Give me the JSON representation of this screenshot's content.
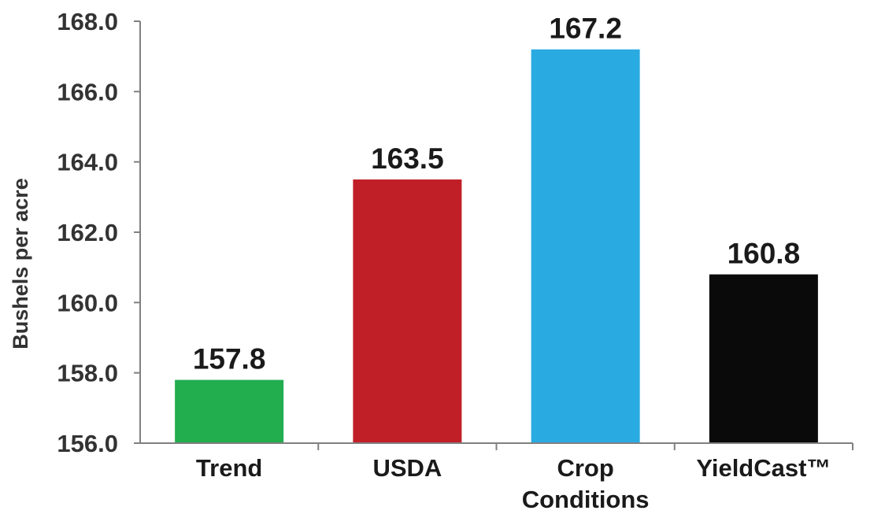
{
  "chart_data": {
    "type": "bar",
    "categories": [
      "Trend",
      "USDA",
      "Crop Conditions",
      "YieldCast™"
    ],
    "category_lines": [
      [
        "Trend"
      ],
      [
        "USDA"
      ],
      [
        "Crop",
        "Conditions"
      ],
      [
        "YieldCast™"
      ]
    ],
    "values": [
      157.8,
      163.5,
      167.2,
      160.8
    ],
    "value_labels": [
      "157.8",
      "163.5",
      "167.2",
      "160.8"
    ],
    "colors": [
      "#22ad4f",
      "#c01f27",
      "#29abe2",
      "#0a0a0a"
    ],
    "ylabel": "Bushels per acre",
    "ylim": [
      156.0,
      168.0
    ],
    "yticks": [
      "156.0",
      "158.0",
      "160.0",
      "162.0",
      "164.0",
      "166.0",
      "168.0"
    ],
    "grid": false,
    "legend": "none"
  }
}
